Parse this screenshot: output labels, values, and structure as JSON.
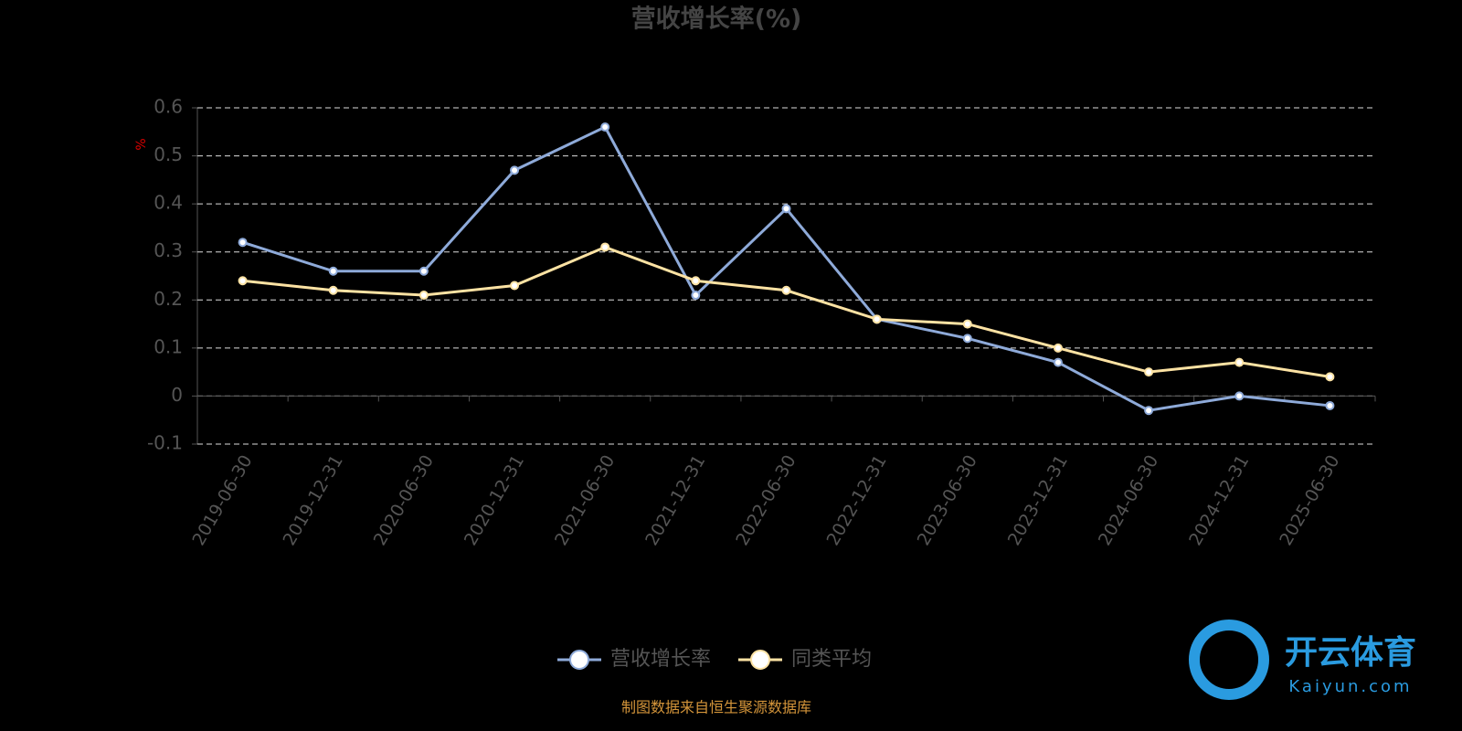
{
  "chart_data": {
    "type": "line",
    "title": "营收增长率(%)",
    "y_label": "%",
    "categories": [
      "2019-06-30",
      "2019-12-31",
      "2020-06-30",
      "2020-12-31",
      "2021-06-30",
      "2021-12-31",
      "2022-06-30",
      "2022-12-31",
      "2023-06-30",
      "2023-12-31",
      "2024-06-30",
      "2024-12-31",
      "2025-06-30"
    ],
    "series": [
      {
        "name": "营收增长率",
        "color": "#8eaad9",
        "values": [
          0.32,
          0.26,
          0.26,
          0.47,
          0.56,
          0.21,
          0.39,
          0.16,
          0.12,
          0.07,
          -0.03,
          0.0,
          -0.02
        ]
      },
      {
        "name": "同类平均",
        "color": "#fce2a3",
        "values": [
          0.24,
          0.22,
          0.21,
          0.23,
          0.31,
          0.24,
          0.22,
          0.16,
          0.15,
          0.1,
          0.05,
          0.07,
          0.04
        ]
      }
    ],
    "ylim": [
      -0.1,
      0.6
    ],
    "yticks": [
      -0.1,
      0,
      0.1,
      0.2,
      0.3,
      0.4,
      0.5,
      0.6
    ],
    "grid": true,
    "legend": "bottom",
    "source": "制图数据来自恒生聚源数据库",
    "watermark": {
      "name": "开云体育",
      "site": "Kaiyun.com"
    }
  }
}
